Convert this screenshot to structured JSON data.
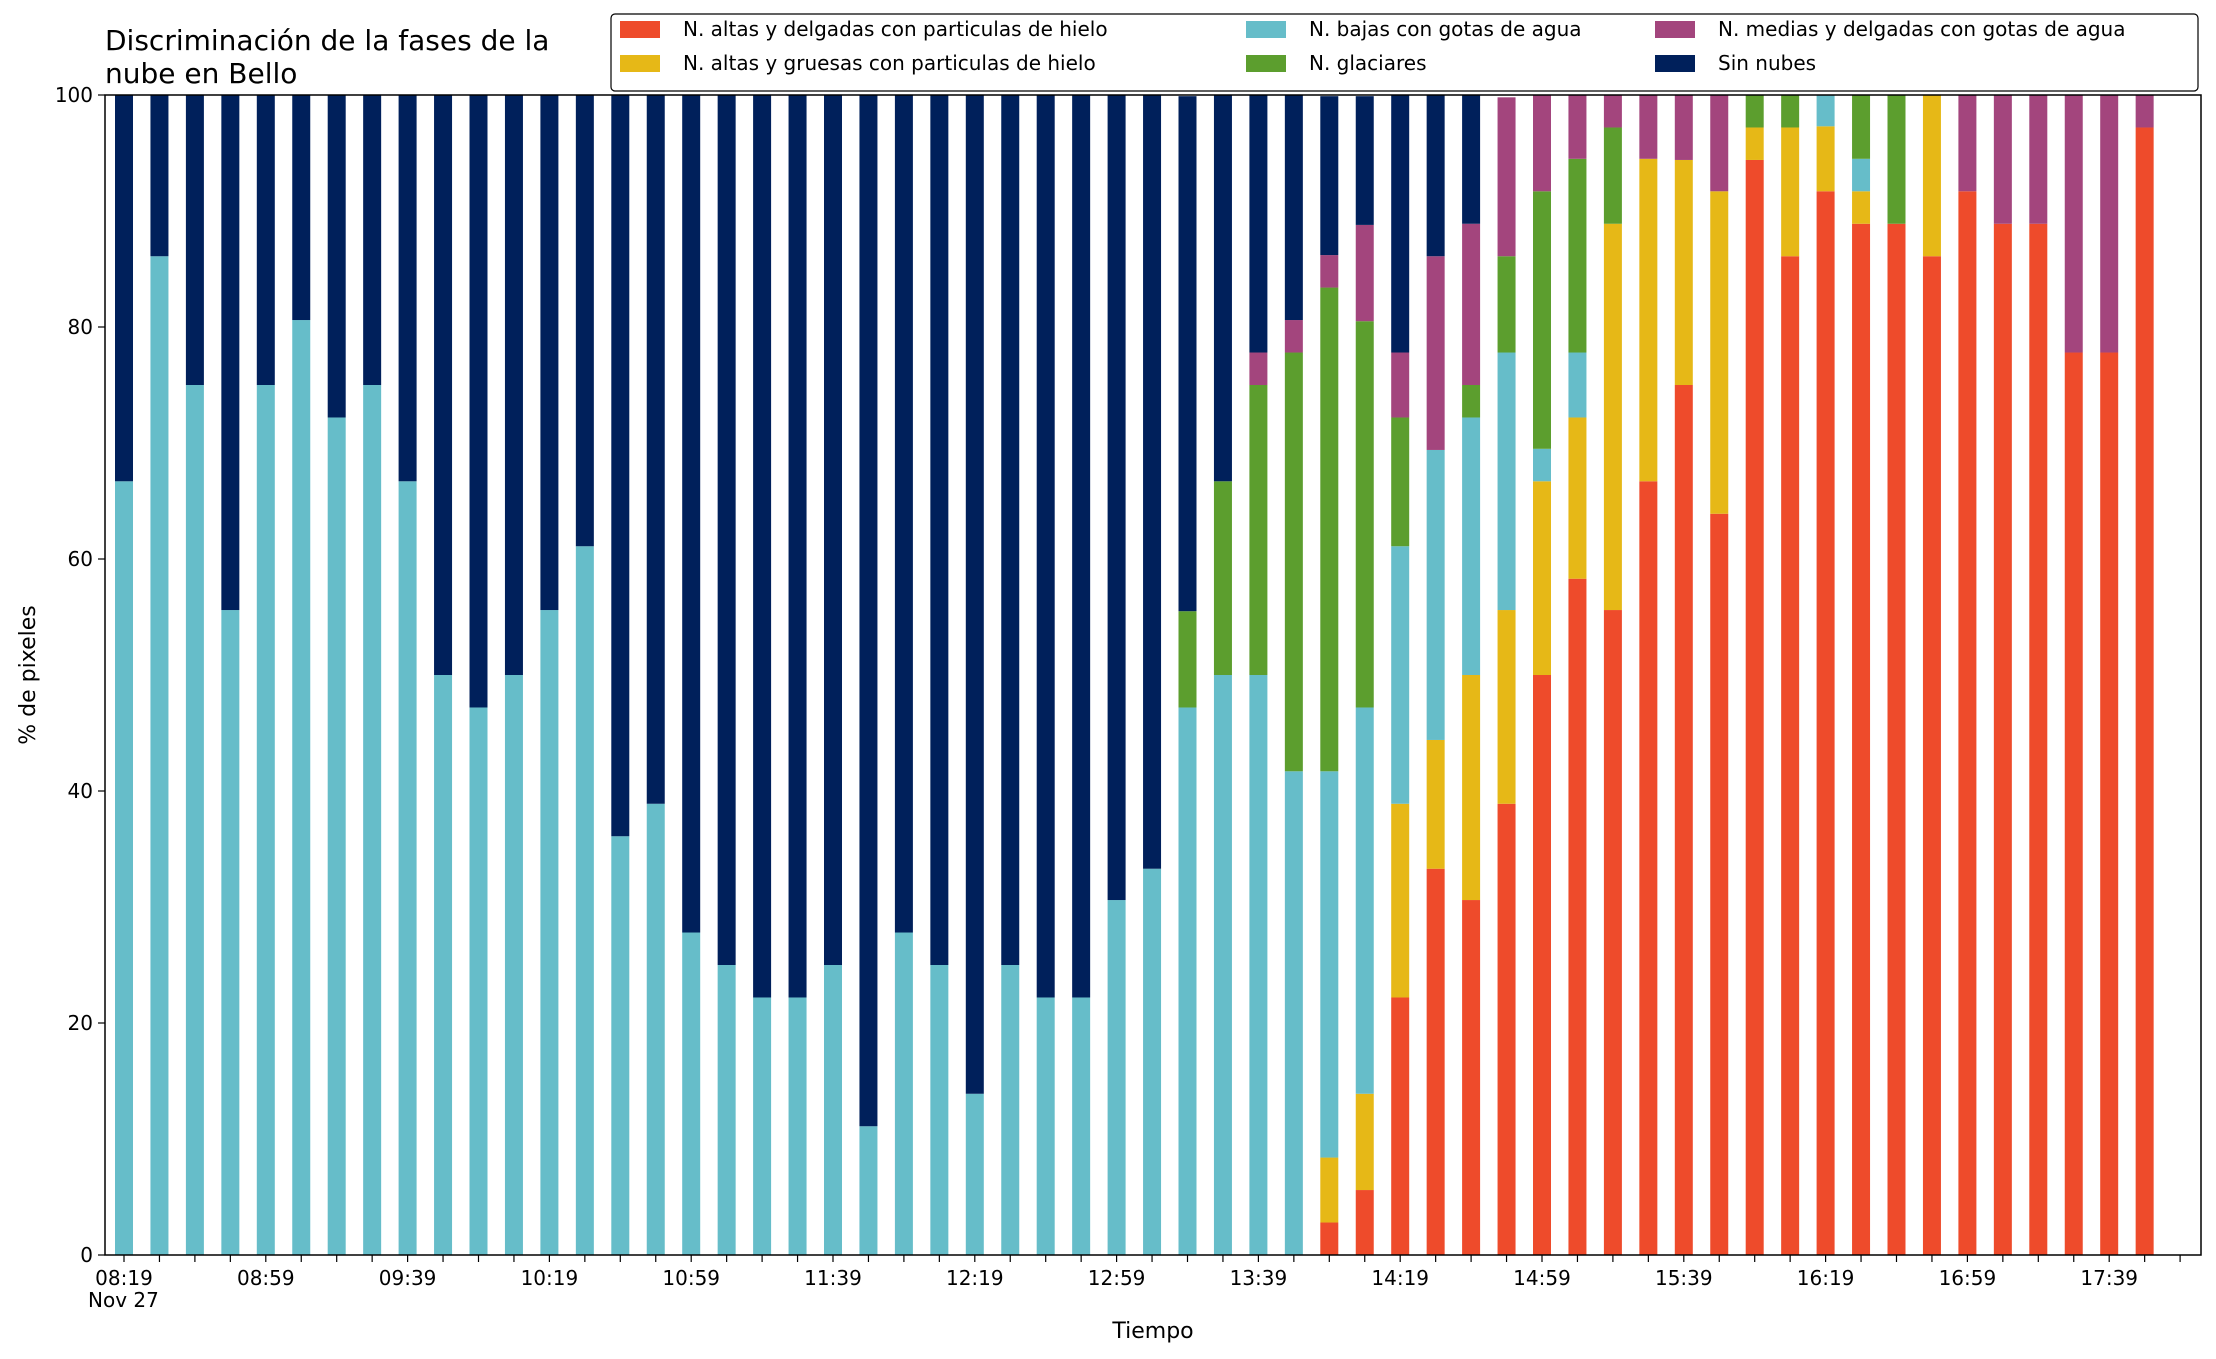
{
  "chart_data": {
    "type": "bar",
    "stacked": true,
    "title": "Discriminación de la fases de la nube en Bello",
    "title_lines": [
      "Discriminación de la fases de la",
      "nube en Bello"
    ],
    "xlabel": "Tiempo",
    "ylabel": "% de pixeles",
    "ylim": [
      0,
      100
    ],
    "yticks": [
      0,
      20,
      40,
      60,
      80,
      100
    ],
    "x_start": "08:19",
    "x_step_minutes": 10,
    "xtick_labels": [
      "08:19",
      "08:59",
      "09:39",
      "10:19",
      "10:59",
      "11:39",
      "12:19",
      "12:59",
      "13:39",
      "14:19",
      "14:59",
      "15:39",
      "16:19",
      "16:59",
      "17:39"
    ],
    "x_date_label": "Nov 27",
    "legend_position": "top-right",
    "categories": [
      "08:19",
      "08:29",
      "08:39",
      "08:49",
      "08:59",
      "09:09",
      "09:19",
      "09:29",
      "09:39",
      "09:49",
      "09:59",
      "10:09",
      "10:19",
      "10:29",
      "10:39",
      "10:49",
      "10:59",
      "11:09",
      "11:19",
      "11:29",
      "11:39",
      "11:49",
      "11:59",
      "12:09",
      "12:19",
      "12:29",
      "12:39",
      "12:49",
      "12:59",
      "13:09",
      "13:19",
      "13:29",
      "13:39",
      "13:49",
      "13:59",
      "14:09",
      "14:19",
      "14:29",
      "14:39",
      "14:49",
      "14:59",
      "15:09",
      "15:19",
      "15:29",
      "15:39",
      "15:49",
      "15:59",
      "16:09",
      "16:19",
      "16:29",
      "16:39",
      "16:49",
      "16:59",
      "17:09",
      "17:19",
      "17:29",
      "17:39",
      "17:49"
    ],
    "series": [
      {
        "name": "N. altas y delgadas con particulas de hielo",
        "color": "#ee4b2b",
        "values": [
          0,
          0,
          0,
          0,
          0,
          0,
          0,
          0,
          0,
          0,
          0,
          0,
          0,
          0,
          0,
          0,
          0,
          0,
          0,
          0,
          0,
          0,
          0,
          0,
          0,
          0,
          0,
          0,
          0,
          0,
          0,
          0,
          0,
          0,
          2.8,
          5.6,
          22.2,
          33.3,
          30.6,
          38.9,
          50,
          58.3,
          55.6,
          66.7,
          75,
          63.9,
          94.4,
          86.1,
          91.7,
          88.9,
          88.9,
          86.1,
          91.7,
          88.9,
          88.9,
          77.8,
          77.8,
          97.2
        ]
      },
      {
        "name": "N. altas y gruesas con particulas de hielo",
        "color": "#e6b817",
        "values": [
          0,
          0,
          0,
          0,
          0,
          0,
          0,
          0,
          0,
          0,
          0,
          0,
          0,
          0,
          0,
          0,
          0,
          0,
          0,
          0,
          0,
          0,
          0,
          0,
          0,
          0,
          0,
          0,
          0,
          0,
          0,
          0,
          0,
          0,
          5.6,
          8.3,
          16.7,
          11.1,
          19.4,
          16.7,
          16.7,
          13.9,
          33.3,
          27.8,
          19.4,
          27.8,
          2.8,
          11.1,
          5.6,
          2.8,
          0,
          13.9,
          0,
          0,
          0,
          0,
          0,
          0
        ]
      },
      {
        "name": "N. bajas con gotas de agua",
        "color": "#66bdc9",
        "values": [
          66.7,
          86.1,
          75,
          55.6,
          75,
          80.6,
          72.2,
          75,
          66.7,
          50,
          47.2,
          50,
          55.6,
          61.1,
          36.1,
          38.9,
          27.8,
          25,
          22.2,
          22.2,
          25,
          11.1,
          27.8,
          25,
          13.9,
          25,
          22.2,
          22.2,
          30.6,
          33.3,
          47.2,
          50,
          50,
          41.7,
          33.3,
          33.3,
          22.2,
          25,
          22.2,
          22.2,
          2.8,
          5.6,
          0,
          0,
          0,
          0,
          0,
          0,
          2.8,
          2.8,
          0,
          0,
          0,
          0,
          0,
          0,
          0,
          0
        ]
      },
      {
        "name": "N. glaciares",
        "color": "#5c9e2e",
        "values": [
          0,
          0,
          0,
          0,
          0,
          0,
          0,
          0,
          0,
          0,
          0,
          0,
          0,
          0,
          0,
          0,
          0,
          0,
          0,
          0,
          0,
          0,
          0,
          0,
          0,
          0,
          0,
          0,
          0,
          0,
          8.3,
          16.7,
          25,
          36.1,
          41.7,
          33.3,
          11.1,
          0,
          2.8,
          8.3,
          22.2,
          16.7,
          8.3,
          0,
          0,
          0,
          2.8,
          2.8,
          0,
          5.6,
          11.1,
          0,
          0,
          0,
          0,
          0,
          0,
          0
        ]
      },
      {
        "name": "N. medias y delgadas con gotas de agua",
        "color": "#a3457d",
        "values": [
          0,
          0,
          0,
          0,
          0,
          0,
          0,
          0,
          0,
          0,
          0,
          0,
          0,
          0,
          0,
          0,
          0,
          0,
          0,
          0,
          0,
          0,
          0,
          0,
          0,
          0,
          0,
          0,
          0,
          0,
          0,
          0,
          2.8,
          2.8,
          2.8,
          8.3,
          5.6,
          16.7,
          13.9,
          13.7,
          8.3,
          5.5,
          2.8,
          5.5,
          5.6,
          8.3,
          0,
          0,
          0,
          0,
          0,
          0,
          8.3,
          11.1,
          11.1,
          22.2,
          22.2,
          2.8
        ]
      },
      {
        "name": "Sin nubes",
        "color": "#00205b",
        "values": [
          33.3,
          13.9,
          25,
          44.4,
          25,
          19.4,
          27.8,
          25,
          33.3,
          50,
          52.8,
          50,
          44.4,
          38.9,
          63.9,
          61.1,
          72.2,
          75,
          77.8,
          77.8,
          75,
          88.9,
          72.2,
          75,
          86.1,
          75,
          77.8,
          77.8,
          69.4,
          66.7,
          44.4,
          33.3,
          22.2,
          19.4,
          13.7,
          11.1,
          22.2,
          13.9,
          11.1,
          0,
          0,
          0,
          0,
          0,
          0,
          0,
          0,
          0,
          0,
          0,
          0,
          0,
          0,
          0,
          0,
          0,
          0,
          0
        ]
      }
    ]
  }
}
